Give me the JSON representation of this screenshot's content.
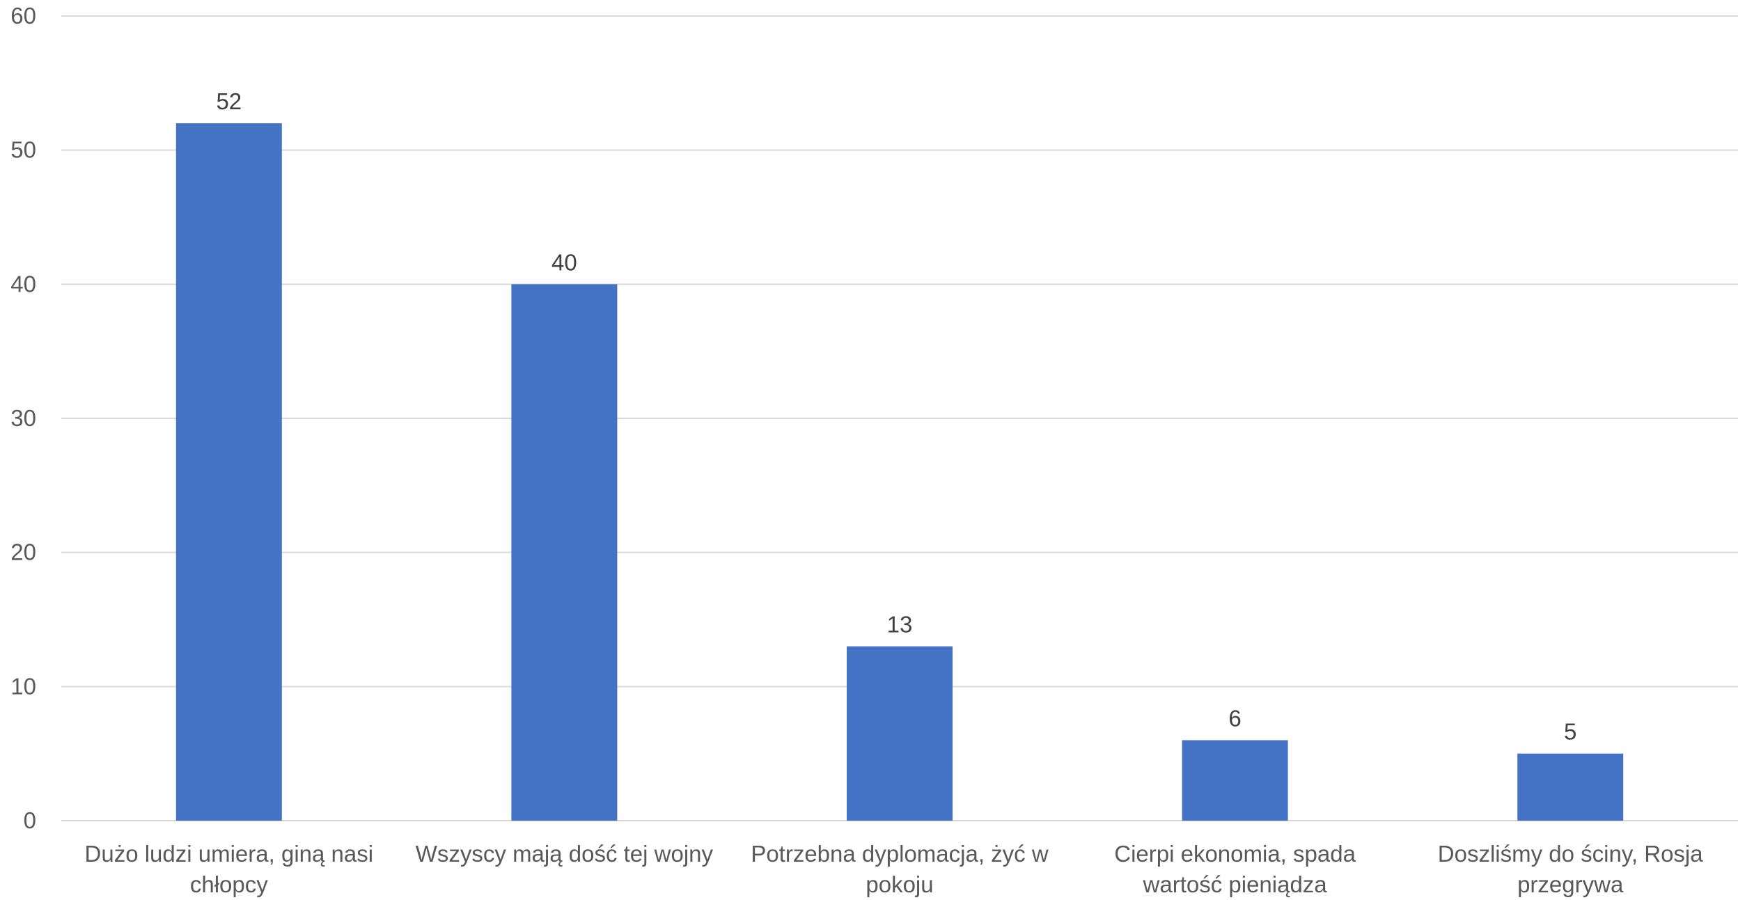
{
  "chart_data": {
    "type": "bar",
    "title": "",
    "xlabel": "",
    "ylabel": "",
    "categories": [
      [
        "Dużo ludzi umiera, giną nasi",
        "chłopcy"
      ],
      [
        "Wszyscy mają dość tej wojny"
      ],
      [
        "Potrzebna dyplomacja, żyć w",
        "pokoju"
      ],
      [
        "Cierpi ekonomia, spada",
        "wartość pieniądza"
      ],
      [
        "Doszliśmy do ściny, Rosja",
        "przegrywa"
      ]
    ],
    "series": [
      {
        "values": [
          52,
          40,
          13,
          6,
          5
        ],
        "color": "#4472c4"
      }
    ],
    "ylim": [
      0,
      60
    ],
    "yticks": [
      0,
      10,
      20,
      30,
      40,
      50,
      60
    ],
    "grid": true,
    "legend": "none",
    "data_labels": true
  }
}
